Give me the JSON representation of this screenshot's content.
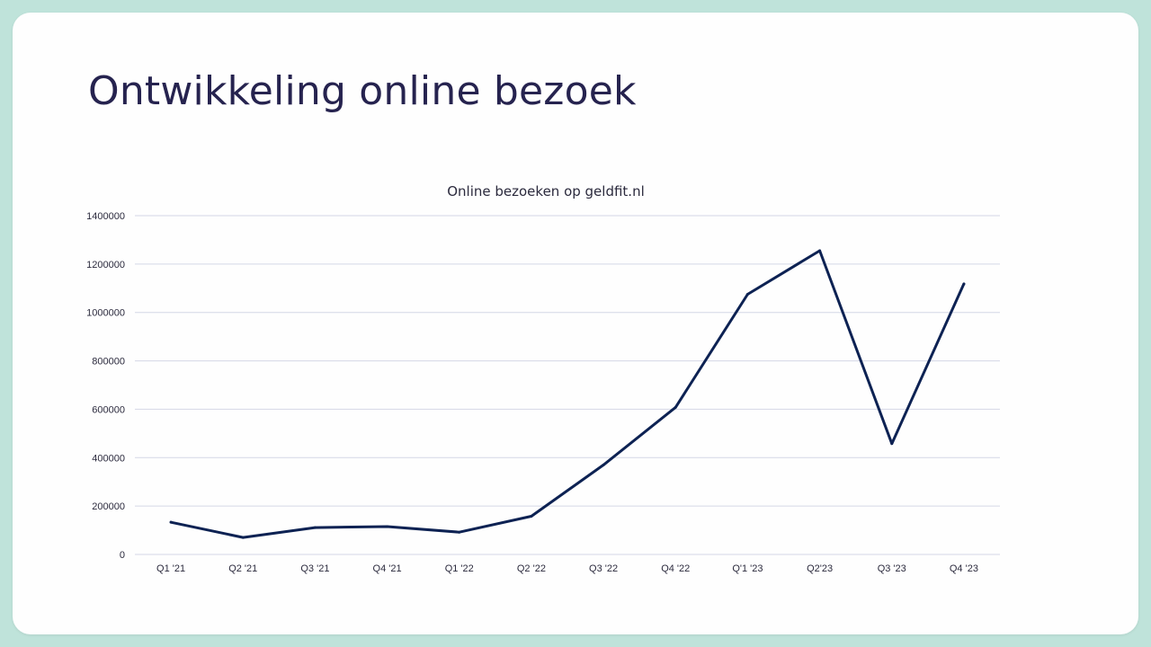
{
  "slide": {
    "title": "Ontwikkeling online bezoek"
  },
  "colors": {
    "background": "#bfe3da",
    "slide": "#fefefe",
    "title": "#26234f",
    "line": "#0d2253",
    "grid": "#d4d7e6"
  },
  "chart_data": {
    "type": "line",
    "title": "Online bezoeken op geldfit.nl",
    "xlabel": "",
    "ylabel": "",
    "categories": [
      "Q1 '21",
      "Q2 '21",
      "Q3 '21",
      "Q4 '21",
      "Q1 '22",
      "Q2 '22",
      "Q3 '22",
      "Q4 '22",
      "Q'1 '23",
      "Q2'23",
      "Q3 '23",
      "Q4 '23"
    ],
    "series": [
      {
        "values": [
          133000,
          70000,
          111000,
          115000,
          92000,
          158000,
          370000,
          608000,
          1075000,
          1255000,
          458000,
          1118000
        ]
      }
    ],
    "ylim": [
      0,
      1400000
    ],
    "yticks": [
      "0",
      "200000",
      "400000",
      "600000",
      "800000",
      "1000000",
      "1200000",
      "1400000"
    ],
    "grid": true,
    "legend": "none"
  }
}
